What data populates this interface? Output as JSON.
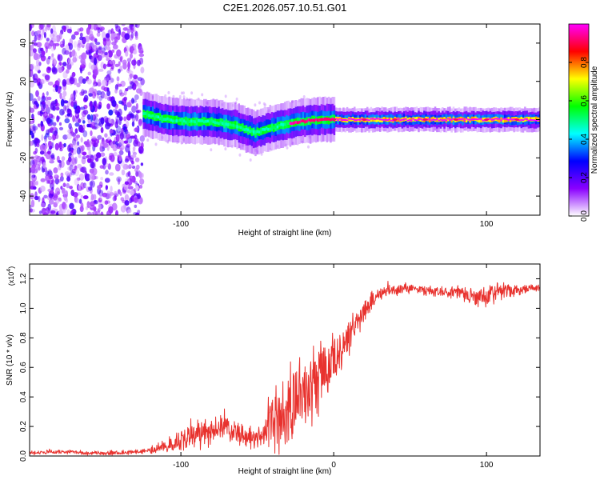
{
  "figure_title": "C2E1.2026.057.10.51.G01",
  "chart_data": [
    {
      "type": "heatmap",
      "name": "spectrogram",
      "xlabel": "Height of straight line (km)",
      "ylabel": "Frequency (Hz)",
      "xlim": [
        -199,
        135
      ],
      "ylim": [
        -50,
        50
      ],
      "xticks": [
        {
          "v": -100,
          "label": "-100"
        },
        {
          "v": 0,
          "label": ""
        },
        {
          "v": 100,
          "label": "100"
        }
      ],
      "yticks": [
        {
          "v": -40,
          "label": "-40"
        },
        {
          "v": -20,
          "label": "-20"
        },
        {
          "v": 0,
          "label": "0"
        },
        {
          "v": 20,
          "label": "20"
        },
        {
          "v": 40,
          "label": "40"
        }
      ],
      "noise_region_x": [
        -199,
        -125
      ],
      "ridge": [
        {
          "x": -125,
          "f": 3
        },
        {
          "x": -110,
          "f": 0
        },
        {
          "x": -95,
          "f": -1
        },
        {
          "x": -80,
          "f": -1
        },
        {
          "x": -65,
          "f": -3
        },
        {
          "x": -52,
          "f": -7
        },
        {
          "x": -45,
          "f": -5
        },
        {
          "x": -35,
          "f": -3
        },
        {
          "x": -22,
          "f": -1
        },
        {
          "x": -10,
          "f": 0
        },
        {
          "x": 0,
          "f": 0
        },
        {
          "x": 50,
          "f": 0
        },
        {
          "x": 100,
          "f": 0
        },
        {
          "x": 135,
          "f": 0
        }
      ],
      "colorbar": {
        "label": "Normalized spectral amplitude",
        "range": [
          0,
          1
        ],
        "ticks": [
          {
            "v": 0.0,
            "label": "0.0"
          },
          {
            "v": 0.2,
            "label": "0.2"
          },
          {
            "v": 0.4,
            "label": "0.4"
          },
          {
            "v": 0.6,
            "label": "0.6"
          },
          {
            "v": 0.8,
            "label": "0.8"
          }
        ],
        "colors": [
          "#ffffff",
          "#8a00ff",
          "#0000ff",
          "#00ffff",
          "#00ff00",
          "#ffff00",
          "#ff0000",
          "#ff00ff"
        ]
      }
    },
    {
      "type": "line",
      "name": "snr",
      "xlabel": "Height of straight line (km)",
      "ylabel": "SNR (10 * v/v)",
      "yscale_label": "(x10",
      "yscale_exp": "4",
      "xlim": [
        -199,
        135
      ],
      "ylim": [
        0,
        1.3
      ],
      "xticks": [
        {
          "v": -100,
          "label": "-100"
        },
        {
          "v": 0,
          "label": "0"
        },
        {
          "v": 100,
          "label": "100"
        }
      ],
      "yticks": [
        {
          "v": 0.0,
          "label": "0.0"
        },
        {
          "v": 0.2,
          "label": "0.2"
        },
        {
          "v": 0.4,
          "label": "0.4"
        },
        {
          "v": 0.6,
          "label": "0.6"
        },
        {
          "v": 0.8,
          "label": "0.8"
        },
        {
          "v": 1.0,
          "label": "1.0"
        },
        {
          "v": 1.2,
          "label": "1.2"
        }
      ],
      "color": "#e8322e",
      "series": [
        {
          "name": "SNR",
          "x": [
            -199,
            -180,
            -160,
            -140,
            -120,
            -110,
            -100,
            -90,
            -80,
            -70,
            -60,
            -50,
            -45,
            -40,
            -35,
            -30,
            -25,
            -20,
            -15,
            -10,
            -5,
            0,
            5,
            10,
            15,
            20,
            25,
            30,
            35,
            40,
            50,
            60,
            70,
            80,
            90,
            95,
            100,
            105,
            110,
            120,
            130,
            135
          ],
          "y": [
            0.02,
            0.03,
            0.02,
            0.02,
            0.04,
            0.07,
            0.1,
            0.14,
            0.17,
            0.2,
            0.14,
            0.12,
            0.16,
            0.22,
            0.27,
            0.33,
            0.38,
            0.43,
            0.47,
            0.52,
            0.59,
            0.66,
            0.72,
            0.8,
            0.9,
            0.98,
            1.05,
            1.1,
            1.13,
            1.12,
            1.14,
            1.12,
            1.11,
            1.11,
            1.08,
            1.1,
            1.06,
            1.1,
            1.12,
            1.12,
            1.14,
            1.14
          ]
        }
      ],
      "noise_amp": [
        {
          "x": -199,
          "a": 0.015
        },
        {
          "x": -125,
          "a": 0.02
        },
        {
          "x": -110,
          "a": 0.05
        },
        {
          "x": -90,
          "a": 0.12
        },
        {
          "x": -75,
          "a": 0.12
        },
        {
          "x": -50,
          "a": 0.08
        },
        {
          "x": -40,
          "a": 0.25
        },
        {
          "x": -25,
          "a": 0.35
        },
        {
          "x": -10,
          "a": 0.32
        },
        {
          "x": 0,
          "a": 0.25
        },
        {
          "x": 15,
          "a": 0.12
        },
        {
          "x": 30,
          "a": 0.05
        },
        {
          "x": 60,
          "a": 0.04
        },
        {
          "x": 85,
          "a": 0.05
        },
        {
          "x": 95,
          "a": 0.1
        },
        {
          "x": 105,
          "a": 0.08
        },
        {
          "x": 120,
          "a": 0.04
        },
        {
          "x": 135,
          "a": 0.03
        }
      ]
    }
  ]
}
